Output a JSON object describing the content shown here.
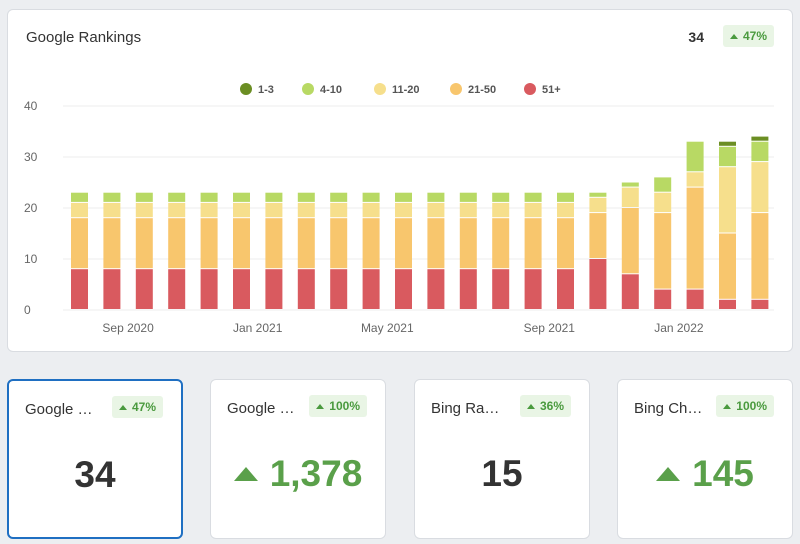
{
  "main": {
    "title": "Google Rankings",
    "value": "34",
    "change": "47%"
  },
  "chart_data": {
    "type": "bar",
    "stacked": true,
    "ylim": [
      0,
      40
    ],
    "yticks": [
      "0",
      "10",
      "20",
      "30",
      "40"
    ],
    "xtick_labels": [
      {
        "label": "Sep 2020",
        "index": 1.5
      },
      {
        "label": "Jan 2021",
        "index": 5.5
      },
      {
        "label": "May 2021",
        "index": 9.5
      },
      {
        "label": "Sep 2021",
        "index": 14.5
      },
      {
        "label": "Jan 2022",
        "index": 18.5
      }
    ],
    "legend_position": "top-center",
    "series": [
      {
        "name": "51+",
        "color": "#d95a5f",
        "values": [
          8,
          8,
          8,
          8,
          8,
          8,
          8,
          8,
          8,
          8,
          8,
          8,
          8,
          8,
          8,
          8,
          10,
          7,
          4,
          4,
          2,
          2
        ]
      },
      {
        "name": "21-50",
        "color": "#f8c66d",
        "values": [
          10,
          10,
          10,
          10,
          10,
          10,
          10,
          10,
          10,
          10,
          10,
          10,
          10,
          10,
          10,
          10,
          9,
          13,
          15,
          20,
          13,
          17
        ]
      },
      {
        "name": "11-20",
        "color": "#f6df8c",
        "values": [
          3,
          3,
          3,
          3,
          3,
          3,
          3,
          3,
          3,
          3,
          3,
          3,
          3,
          3,
          3,
          3,
          3,
          4,
          4,
          3,
          13,
          10
        ]
      },
      {
        "name": "4-10",
        "color": "#b8d964",
        "values": [
          2,
          2,
          2,
          2,
          2,
          2,
          2,
          2,
          2,
          2,
          2,
          2,
          2,
          2,
          2,
          2,
          1,
          1,
          3,
          6,
          4,
          4
        ]
      },
      {
        "name": "1-3",
        "color": "#6b8e23",
        "values": [
          0,
          0,
          0,
          0,
          0,
          0,
          0,
          0,
          0,
          0,
          0,
          0,
          0,
          0,
          0,
          0,
          0,
          0,
          0,
          0,
          1,
          1
        ]
      }
    ],
    "legend_order": [
      "1-3",
      "4-10",
      "11-20",
      "21-50",
      "51+"
    ]
  },
  "kpis": [
    {
      "title": "Google Rankings",
      "change": "47%",
      "value": "34",
      "trend": "none",
      "active": true
    },
    {
      "title": "Google Search Volume",
      "change": "100%",
      "value": "1,378",
      "trend": "up",
      "active": false
    },
    {
      "title": "Bing Rankings",
      "change": "36%",
      "value": "15",
      "trend": "none",
      "active": false
    },
    {
      "title": "Bing Changes",
      "change": "100%",
      "value": "145",
      "trend": "up",
      "active": false
    }
  ]
}
